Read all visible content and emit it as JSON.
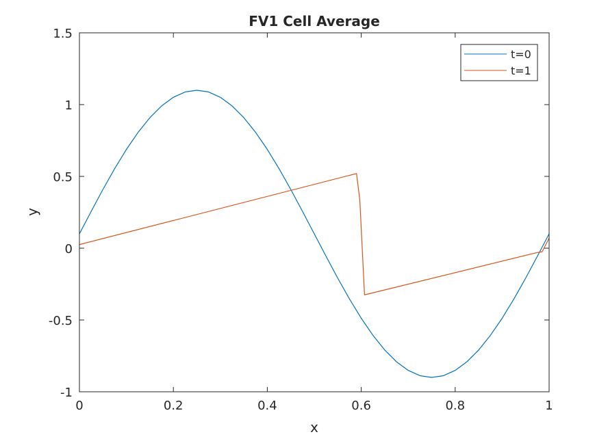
{
  "chart_data": {
    "type": "line",
    "title": "FV1 Cell Average",
    "xlabel": "x",
    "ylabel": "y",
    "xlim": [
      0,
      1
    ],
    "ylim": [
      -1,
      1.5
    ],
    "xticks": [
      0,
      0.2,
      0.4,
      0.6,
      0.8,
      1
    ],
    "xtick_labels": [
      "0",
      "0.2",
      "0.4",
      "0.6",
      "0.8",
      "1"
    ],
    "yticks": [
      -1,
      -0.5,
      0,
      0.5,
      1,
      1.5
    ],
    "ytick_labels": [
      "-1",
      "-0.5",
      "0",
      "0.5",
      "1",
      "1.5"
    ],
    "grid": false,
    "legend_position": "top-right",
    "series": [
      {
        "name": "t=0",
        "color": "#0072BD",
        "x": [
          0,
          0.025,
          0.05,
          0.075,
          0.1,
          0.125,
          0.15,
          0.175,
          0.2,
          0.225,
          0.25,
          0.275,
          0.3,
          0.325,
          0.35,
          0.375,
          0.4,
          0.425,
          0.45,
          0.475,
          0.5,
          0.525,
          0.55,
          0.575,
          0.6,
          0.625,
          0.65,
          0.675,
          0.7,
          0.725,
          0.75,
          0.775,
          0.8,
          0.825,
          0.85,
          0.875,
          0.9,
          0.925,
          0.95,
          0.975,
          1
        ],
        "y": [
          0.1,
          0.256,
          0.409,
          0.554,
          0.688,
          0.807,
          0.909,
          0.991,
          1.051,
          1.088,
          1.1,
          1.088,
          1.051,
          0.991,
          0.909,
          0.807,
          0.688,
          0.554,
          0.409,
          0.256,
          0.1,
          -0.056,
          -0.209,
          -0.354,
          -0.488,
          -0.607,
          -0.709,
          -0.791,
          -0.851,
          -0.888,
          -0.9,
          -0.888,
          -0.851,
          -0.791,
          -0.709,
          -0.607,
          -0.488,
          -0.354,
          -0.209,
          -0.056,
          0.1
        ]
      },
      {
        "name": "t=1",
        "color": "#D95319",
        "x": [
          0,
          0.59,
          0.597,
          0.607,
          0.975,
          0.985,
          1
        ],
        "y": [
          0.025,
          0.52,
          0.335,
          -0.325,
          -0.03,
          -0.025,
          0.07
        ]
      }
    ]
  }
}
